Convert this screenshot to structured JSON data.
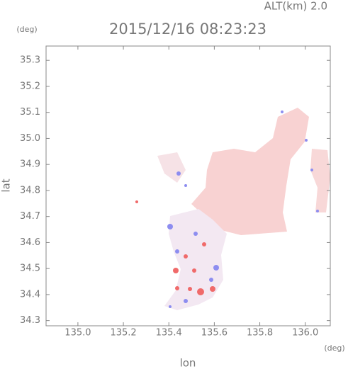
{
  "chart_data": {
    "type": "map",
    "title": "2015/12/16 08:23:23",
    "subtitle": "ALT(km)  2.0",
    "x_label": "lon",
    "y_label": "lat",
    "x_unit": "(deg)",
    "y_unit": "(deg)",
    "xlim": [
      134.86,
      136.11
    ],
    "xticks": [
      {
        "value": 135,
        "label": "135.0"
      },
      135.2,
      135.4,
      135.6,
      135.8,
      {
        "value": 136,
        "label": "136.0"
      }
    ],
    "ylim": [
      34.28,
      35.355
    ],
    "yticks": [
      34.3,
      34.4,
      34.5,
      34.6,
      34.7,
      34.8,
      34.9,
      {
        "value": 35,
        "label": "35.0"
      },
      35.1,
      35.2,
      35.3
    ]
  }
}
